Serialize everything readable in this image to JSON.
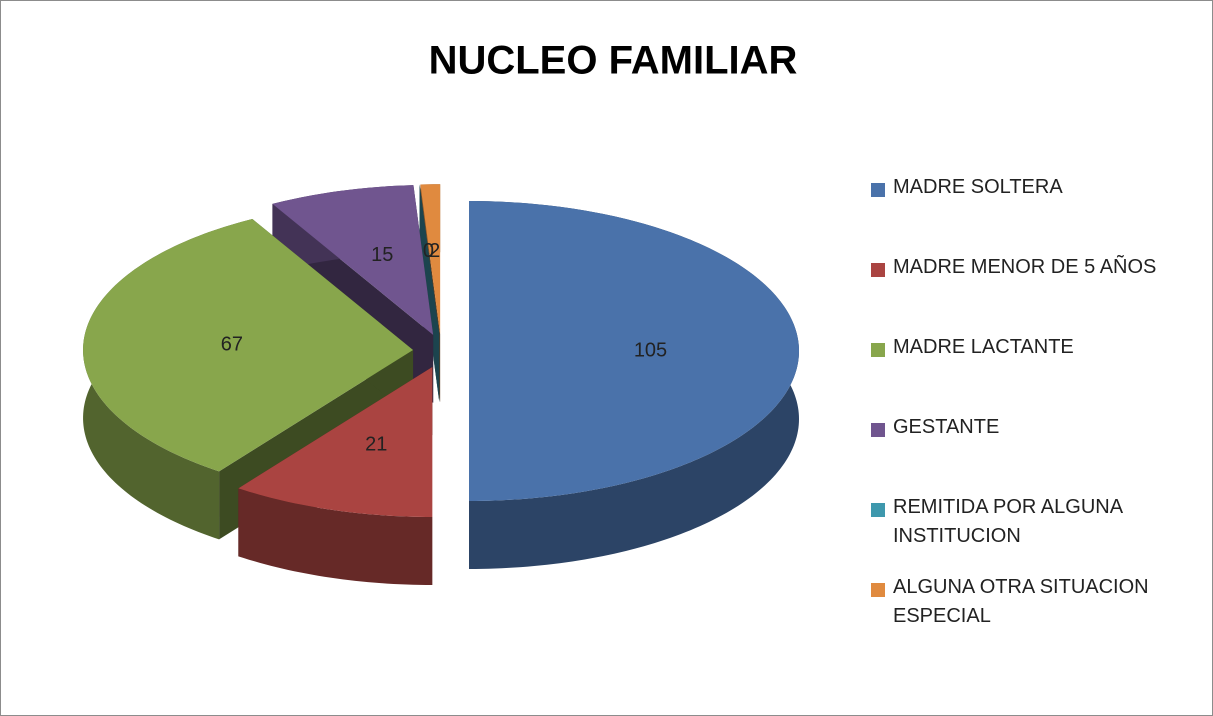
{
  "chart_data": {
    "type": "pie3d",
    "title": "NUCLEO FAMILIAR",
    "categories": [
      "MADRE SOLTERA",
      "MADRE MENOR DE 5 AÑOS",
      "MADRE LACTANTE",
      "GESTANTE",
      "REMITIDA POR ALGUNA INSTITUCION",
      "ALGUNA OTRA SITUACION ESPECIAL"
    ],
    "values": [
      105,
      21,
      67,
      15,
      0,
      2
    ],
    "colors": [
      "#4a72aa",
      "#aa4441",
      "#88a64c",
      "#70558f",
      "#3e98ad",
      "#e08a3f"
    ],
    "legend": "right"
  }
}
